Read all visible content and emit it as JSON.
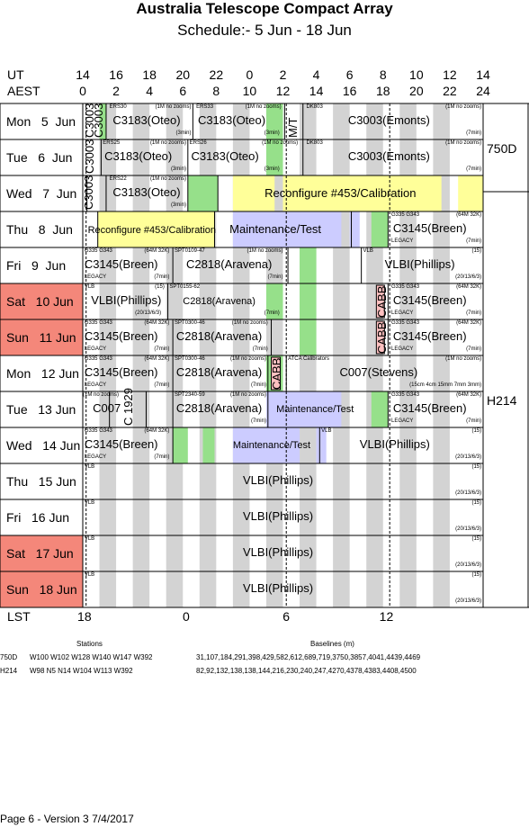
{
  "title": "Australia Telescope Compact Array",
  "subtitle": "Schedule:- 5  Jun - 18 Jun",
  "axes": {
    "ut_label": "UT",
    "aest_label": "AEST",
    "lst_label": "LST",
    "ut_ticks": [
      "14",
      "16",
      "18",
      "20",
      "22",
      "0",
      "2",
      "4",
      "6",
      "8",
      "10",
      "12",
      "14"
    ],
    "aest_ticks": [
      "0",
      "2",
      "4",
      "6",
      "8",
      "10",
      "12",
      "14",
      "16",
      "18",
      "20",
      "22",
      "24"
    ],
    "lst_ticks": [
      "18",
      "0",
      "6",
      "12"
    ]
  },
  "days": [
    {
      "label": "Mon   5  Jun",
      "weekend": false
    },
    {
      "label": "Tue   6  Jun",
      "weekend": false
    },
    {
      "label": "Wed   7  Jun",
      "weekend": false
    },
    {
      "label": "Thu   8  Jun",
      "weekend": false
    },
    {
      "label": "Fri   9  Jun",
      "weekend": false
    },
    {
      "label": "Sat   10 Jun",
      "weekend": true
    },
    {
      "label": "Sun   11 Jun",
      "weekend": true
    },
    {
      "label": "Mon   12 Jun",
      "weekend": false
    },
    {
      "label": "Tue   13 Jun",
      "weekend": false
    },
    {
      "label": "Wed   14 Jun",
      "weekend": false
    },
    {
      "label": "Thu   15 Jun",
      "weekend": false
    },
    {
      "label": "Fri   16 Jun",
      "weekend": false
    },
    {
      "label": "Sat   17 Jun",
      "weekend": true
    },
    {
      "label": "Sun   18 Jun",
      "weekend": true
    }
  ],
  "configs": [
    "750D",
    "H214"
  ],
  "texts": {
    "c3003": "C3003",
    "c3183": "C3183(Oteo)",
    "c3003e": "C3003(Emonts)",
    "ers30": "ERS30",
    "ers33": "ERS33",
    "ers25": "ERS25",
    "ers26": "ERS26",
    "ers22": "ERS22",
    "nozoom": "(1M no zooms)",
    "min3": "(3min)",
    "min7": "(7min)",
    "dk803": "DK803",
    "mt": "M/T",
    "reconfig": "Reconfigure #453/Calibration",
    "maint": "Maintenance/Test",
    "c3145": "C3145(Breen)",
    "g335": "G335 G343",
    "k64": "(64M 32K)",
    "legacy": "LEGACY",
    "c2818": "C2818(Aravena)",
    "spt0109": "SPT0109-47",
    "spt0155": "SPT0155-62",
    "spt0300": "SPT0300-46",
    "spt2340": "SPT2340-59",
    "vlb": "VLB",
    "vlbi": "VLBI(Phillips)",
    "n15": "(15)",
    "n20": "(20/13/6/3)",
    "cabb": "CABB",
    "atca": "ATCA Calibrators",
    "c007s": "C007(Stevens)",
    "c007": "C007",
    "c1929": "C 1929",
    "stevens_note": "(15cm 4cm 15mm 7mm 3mm)",
    "c2818s": "C2818(Aravena)"
  },
  "footer": {
    "stations_header": "Stations",
    "baselines_header": "Baselines (m)",
    "rows": [
      {
        "config": "750D",
        "stations": "W100 W102 W128 W140 W147 W392",
        "baselines": "31,107,184,291,398,429,582,612,689,719,3750,3857,4041,4439,4469"
      },
      {
        "config": "H214",
        "stations": "W98 N5 N14 W104 W113 W392",
        "baselines": "82,92,132,138,138,144,216,230,240,247,4270,4378,4383,4408,4500"
      }
    ],
    "version": "Page 6 - Version 3  7/4/2017"
  },
  "colors": {
    "weekend": "#f4877a",
    "gray": "#d3d3d3",
    "green": "#96e08a",
    "yellow": "#ffff99",
    "lavender": "#ccccff",
    "cabb_pink": "#ffc0c0"
  }
}
